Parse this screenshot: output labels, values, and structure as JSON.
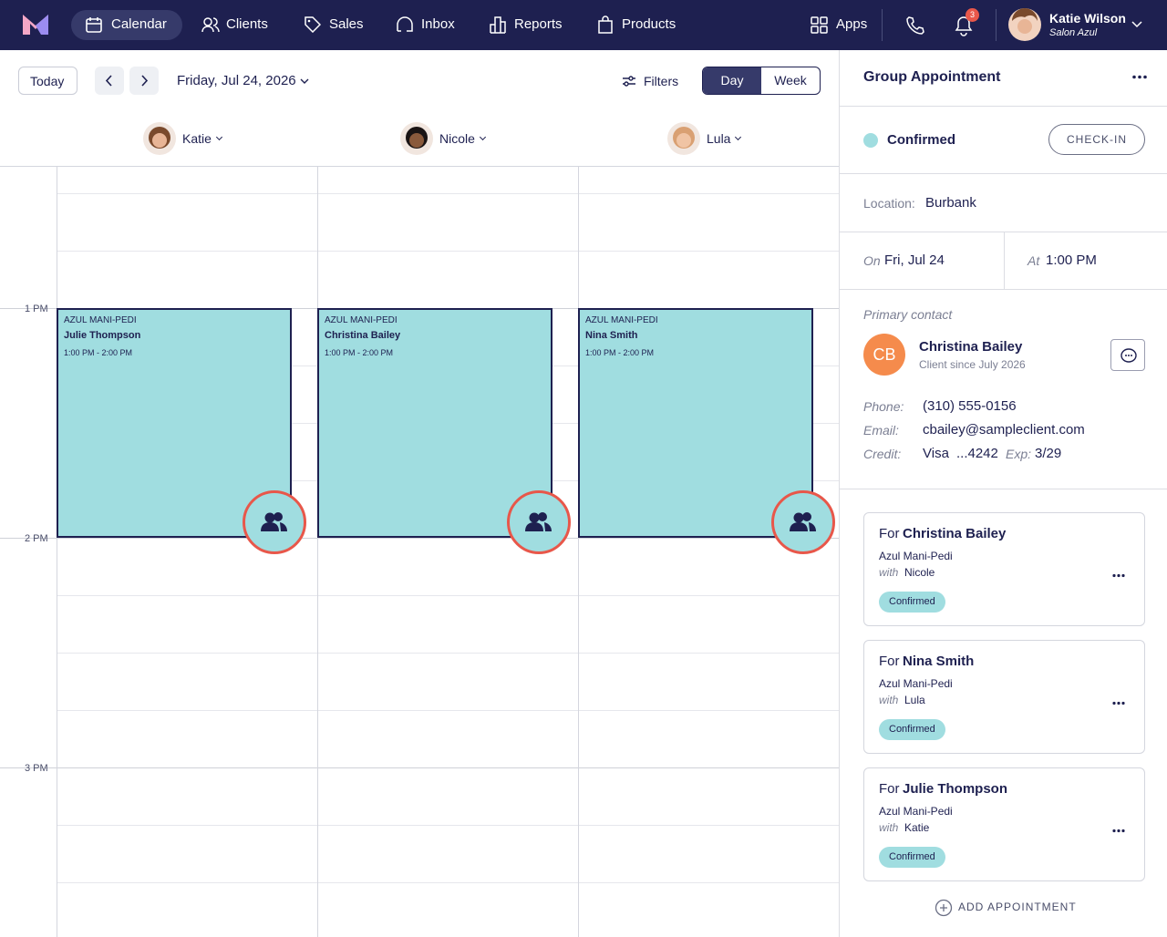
{
  "nav": {
    "items": [
      "Calendar",
      "Clients",
      "Sales",
      "Inbox",
      "Reports",
      "Products"
    ],
    "apps": "Apps",
    "badge": "3",
    "user_name": "Katie Wilson",
    "user_salon": "Salon Azul"
  },
  "toolbar": {
    "today": "Today",
    "date": "Friday, Jul 24, 2026",
    "filters": "Filters",
    "views": [
      "Day",
      "Week"
    ]
  },
  "staff": [
    "Katie",
    "Nicole",
    "Lula"
  ],
  "time_labels": [
    "1 PM",
    "2 PM",
    "3 PM"
  ],
  "appointments": [
    {
      "service": "AZUL MANI-PEDI",
      "client": "Julie Thompson",
      "time": "1:00 PM - 2:00 PM"
    },
    {
      "service": "AZUL MANI-PEDI",
      "client": "Christina Bailey",
      "time": "1:00 PM - 2:00 PM"
    },
    {
      "service": "AZUL MANI-PEDI",
      "client": "Nina Smith",
      "time": "1:00 PM - 2:00 PM"
    }
  ],
  "panel": {
    "title": "Group Appointment",
    "status": "Confirmed",
    "check_in": "CHECK-IN",
    "location_label": "Location:",
    "location": "Burbank",
    "on_label": "On",
    "on_value": "Fri, Jul 24",
    "at_label": "At",
    "at_value": "1:00 PM",
    "contact_heading": "Primary contact",
    "initials": "CB",
    "contact_name": "Christina Bailey",
    "contact_since": "Client since July 2026",
    "phone_label": "Phone:",
    "phone": "(310) 555-0156",
    "email_label": "Email:",
    "email": "cbailey@sampleclient.com",
    "credit_label": "Credit:",
    "card_brand": "Visa",
    "card_number": "...4242",
    "exp_label": "Exp:",
    "exp": "3/29",
    "cards": [
      {
        "prefix": "For",
        "name": "Christina Bailey",
        "service": "Azul Mani-Pedi",
        "with_label": "with",
        "staff": "Nicole",
        "status": "Confirmed"
      },
      {
        "prefix": "For",
        "name": "Nina Smith",
        "service": "Azul Mani-Pedi",
        "with_label": "with",
        "staff": "Lula",
        "status": "Confirmed"
      },
      {
        "prefix": "For",
        "name": "Julie Thompson",
        "service": "Azul Mani-Pedi",
        "with_label": "with",
        "staff": "Katie",
        "status": "Confirmed"
      }
    ],
    "add": "ADD APPOINTMENT"
  }
}
